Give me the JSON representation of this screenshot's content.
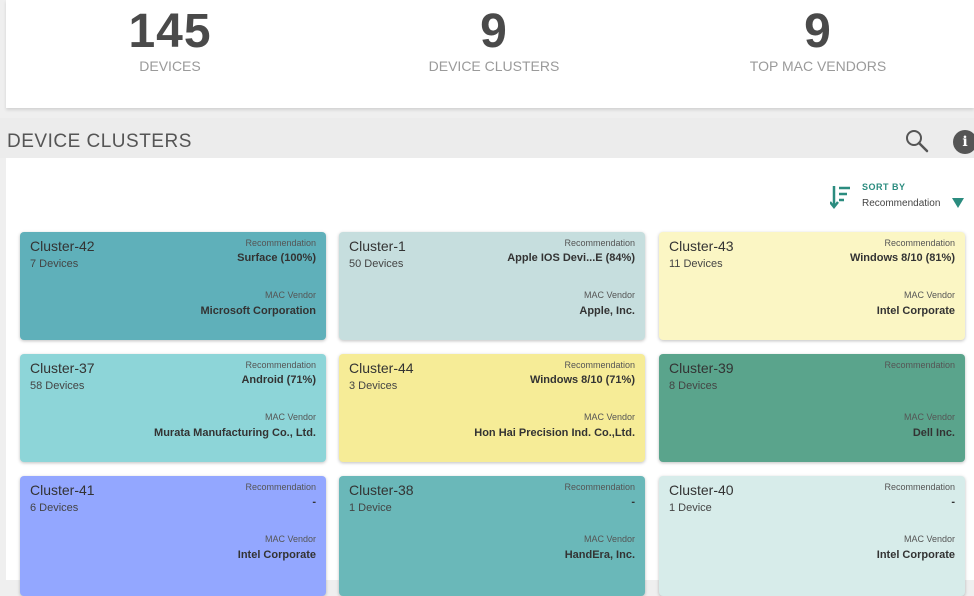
{
  "stats": [
    {
      "value": "145",
      "label": "DEVICES"
    },
    {
      "value": "9",
      "label": "DEVICE CLUSTERS"
    },
    {
      "value": "9",
      "label": "TOP MAC VENDORS"
    }
  ],
  "section": {
    "title": "DEVICE CLUSTERS",
    "icons": {
      "search": "search-icon",
      "info": "info-icon"
    },
    "info_glyph": "i"
  },
  "sort": {
    "label": "SORT BY",
    "value": "Recommendation",
    "icons": {
      "sort": "sort-icon",
      "dropdown": "caret-down-icon"
    }
  },
  "card_labels": {
    "recommendation": "Recommendation",
    "mac_vendor": "MAC Vendor"
  },
  "colors": {
    "accent": "#2b8c7f"
  },
  "clusters": [
    {
      "name": "Cluster-42",
      "count": "7 Devices",
      "recommendation": "Surface (100%)",
      "mac_vendor": "Microsoft Corporation",
      "color": "#5fb0ba"
    },
    {
      "name": "Cluster-1",
      "count": "50 Devices",
      "recommendation": "Apple IOS Devi...E (84%)",
      "mac_vendor": "Apple, Inc.",
      "color": "#c6dede"
    },
    {
      "name": "Cluster-43",
      "count": "11 Devices",
      "recommendation": "Windows 8/10 (81%)",
      "mac_vendor": "Intel Corporate",
      "color": "#fbf6c4"
    },
    {
      "name": "Cluster-37",
      "count": "58 Devices",
      "recommendation": "Android (71%)",
      "mac_vendor": "Murata Manufacturing Co., Ltd.",
      "color": "#8dd5d8"
    },
    {
      "name": "Cluster-44",
      "count": "3 Devices",
      "recommendation": "Windows 8/10 (71%)",
      "mac_vendor": "Hon Hai Precision Ind. Co.,Ltd.",
      "color": "#f6ec97"
    },
    {
      "name": "Cluster-39",
      "count": "8 Devices",
      "recommendation": "",
      "mac_vendor": "Dell Inc.",
      "color": "#5aa48c"
    },
    {
      "name": "Cluster-41",
      "count": "6 Devices",
      "recommendation": "-",
      "mac_vendor": "Intel Corporate",
      "color": "#93a7ff"
    },
    {
      "name": "Cluster-38",
      "count": "1 Device",
      "recommendation": "-",
      "mac_vendor": "HandEra, Inc.",
      "color": "#6ab8b9"
    },
    {
      "name": "Cluster-40",
      "count": "1 Device",
      "recommendation": "-",
      "mac_vendor": "Intel Corporate",
      "color": "#d7ecea"
    }
  ]
}
